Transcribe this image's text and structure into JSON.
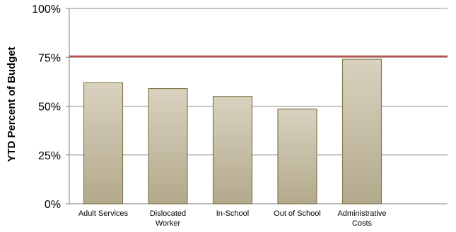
{
  "chart_data": {
    "type": "bar",
    "title": "",
    "xlabel": "",
    "ylabel": "YTD Percent of Budget",
    "ylim": [
      0,
      100
    ],
    "yticks": [
      "0%",
      "25%",
      "50%",
      "75%",
      "100%"
    ],
    "yticks_values": [
      0,
      25,
      50,
      75,
      100
    ],
    "categories": [
      [
        "Adult Services"
      ],
      [
        "Dislocated",
        "Worker"
      ],
      [
        "In-School"
      ],
      [
        "Out of School"
      ],
      [
        "Administrative",
        "Costs"
      ]
    ],
    "values": [
      62,
      59,
      55,
      48.5,
      74
    ],
    "reference_line": {
      "value": 75.5,
      "color": "#c0504d"
    },
    "grid": true,
    "colors": {
      "bar_top": "#d8d2bf",
      "bar_bottom": "#b3a98c",
      "bar_stroke": "#857a4c",
      "grid": "#8c8c8c",
      "axis": "#7f7f7f"
    }
  }
}
